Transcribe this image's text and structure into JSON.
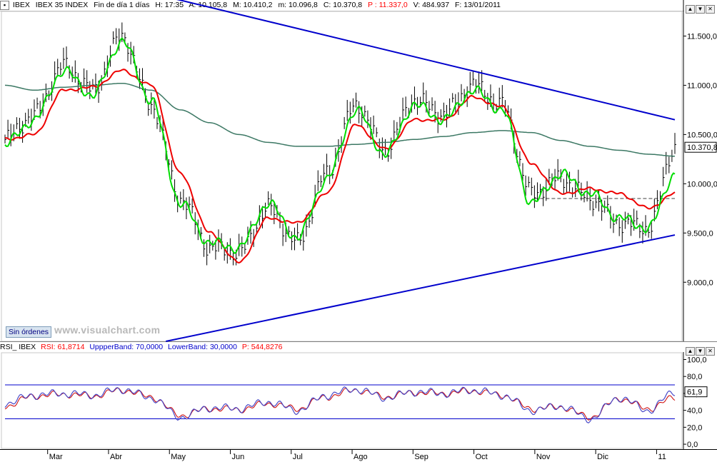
{
  "header": {
    "symbol": "IBEX",
    "name": "IBEX 35 INDEX",
    "timeframe": "Fin de día 1 días",
    "hour": "H: 17:35",
    "high": "A: 10.105,8",
    "mid": "M: 10.410,2",
    "low": "m: 10.096,8",
    "close": "C: 10.370,8",
    "pointer": "P : 11.337,0",
    "volume": "V: 484.937",
    "date": "F: 13/01/2011"
  },
  "rsi_header": {
    "name": "RSI_ IBEX",
    "rsi": "RSI: 61,8714",
    "upper": "UppperBand: 70,0000",
    "lower": "LowerBand: 30,0000",
    "pointer": "P: 544,8276"
  },
  "badge": "Sin órdenes",
  "watermark": "www.visualchart.com",
  "colors": {
    "price": "#000000",
    "fast_ma": "#00dd00",
    "slow_ma": "#ee0000",
    "long_ma": "#3c7864",
    "trendline": "#0000cc",
    "rsi": "#4a4ac8",
    "rsi_signal": "#cc0000",
    "band": "#0000cc"
  },
  "chart_data": [
    {
      "type": "line",
      "title": "IBEX 35 INDEX",
      "x_ticks": [
        "Mar",
        "Abr",
        "May",
        "Jun",
        "Jul",
        "Ago",
        "Sep",
        "Oct",
        "Nov",
        "Dic",
        "11"
      ],
      "y_ticks": [
        "11.500,0",
        "11.000,0",
        "10.500,0",
        "10.000,0",
        "9.500,0",
        "9.000,0"
      ],
      "y_tick_values": [
        11500,
        11000,
        10500,
        10000,
        9500,
        9000
      ],
      "last_value_label": "10.370,8",
      "last_value": 10370.8,
      "x": [
        0,
        10,
        20,
        30,
        40,
        50,
        60,
        70,
        80,
        90,
        100,
        110,
        120,
        130,
        140,
        150,
        160,
        170,
        180,
        190,
        200,
        210,
        220,
        229
      ],
      "ylim": [
        8400,
        11750
      ],
      "series": [
        {
          "role": "close",
          "values": [
            10450,
            10700,
            11200,
            10950,
            11500,
            10800,
            9850,
            9350,
            9300,
            9750,
            9400,
            10100,
            10800,
            10350,
            10850,
            10700,
            11000,
            10800,
            9900,
            10050,
            9850,
            9600,
            9550,
            10370
          ]
        },
        {
          "role": "fast average",
          "values": [
            10400,
            10650,
            11150,
            10900,
            11450,
            10850,
            9800,
            9400,
            9350,
            9800,
            9450,
            10050,
            10750,
            10300,
            10800,
            10650,
            10950,
            10750,
            9800,
            10100,
            9900,
            9650,
            9550,
            10100
          ]
        },
        {
          "role": "slow average",
          "values": [
            10450,
            10500,
            10950,
            10980,
            11150,
            11000,
            10100,
            9500,
            9200,
            9650,
            9600,
            9900,
            10600,
            10350,
            10650,
            10650,
            10880,
            10780,
            10200,
            9900,
            9950,
            9900,
            9750,
            9900
          ]
        },
        {
          "role": "long average",
          "values": [
            11000,
            10950,
            10980,
            11000,
            11020,
            10950,
            10750,
            10620,
            10500,
            10420,
            10380,
            10380,
            10400,
            10420,
            10450,
            10480,
            10520,
            10540,
            10520,
            10440,
            10380,
            10340,
            10300,
            10280
          ]
        }
      ],
      "trendlines": [
        {
          "from": [
            48,
            11950
          ],
          "to": [
            229,
            10650
          ]
        },
        {
          "from": [
            55,
            8400
          ],
          "to": [
            229,
            9480
          ]
        }
      ],
      "dashed_level": 9850
    },
    {
      "type": "line",
      "title": "RSI_ IBEX",
      "y_ticks": [
        "100,0",
        "80,0",
        "60,0",
        "40,0",
        "20,0",
        "0,0"
      ],
      "y_tick_values": [
        100,
        80,
        60,
        40,
        20,
        0
      ],
      "bands": [
        70,
        30
      ],
      "last_value_label": "61,9",
      "last_value": 61.9,
      "x": [
        0,
        10,
        20,
        30,
        40,
        50,
        60,
        70,
        80,
        90,
        100,
        110,
        120,
        130,
        140,
        150,
        160,
        170,
        180,
        190,
        200,
        210,
        220,
        229
      ],
      "ylim": [
        -5,
        108
      ],
      "series": [
        {
          "role": "rsi",
          "values": [
            48,
            58,
            60,
            58,
            65,
            55,
            32,
            43,
            42,
            50,
            40,
            58,
            65,
            55,
            62,
            60,
            64,
            58,
            40,
            45,
            30,
            55,
            40,
            62
          ]
        },
        {
          "role": "signal",
          "values": [
            45,
            57,
            59,
            57,
            64,
            56,
            34,
            42,
            41,
            48,
            42,
            56,
            64,
            56,
            61,
            60,
            63,
            58,
            42,
            44,
            32,
            54,
            42,
            55
          ]
        }
      ]
    }
  ]
}
